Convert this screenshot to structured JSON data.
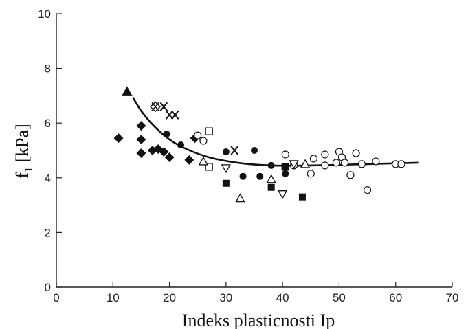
{
  "chart_data": {
    "type": "scatter",
    "xlabel": "Indeks plasticnosti Ip",
    "ylabel_main": "f",
    "ylabel_sub": "1",
    "ylabel_unit": "[kPa]",
    "xlim": [
      0,
      70
    ],
    "ylim": [
      0,
      10
    ],
    "xticks": [
      0,
      10,
      20,
      30,
      40,
      50,
      60,
      70
    ],
    "yticks": [
      0,
      2,
      4,
      6,
      8,
      10
    ],
    "grid": false,
    "series": [
      {
        "marker": "triangle-filled",
        "points": [
          [
            12.5,
            7.15
          ]
        ]
      },
      {
        "marker": "diamond-filled",
        "points": [
          [
            11,
            5.45
          ],
          [
            15,
            5.9
          ],
          [
            15,
            5.4
          ],
          [
            15,
            4.9
          ],
          [
            17,
            5.0
          ],
          [
            18,
            5.05
          ],
          [
            19,
            4.95
          ],
          [
            20,
            4.75
          ],
          [
            23.5,
            4.65
          ],
          [
            24.5,
            5.45
          ]
        ]
      },
      {
        "marker": "circle-filled",
        "points": [
          [
            19.5,
            5.6
          ],
          [
            22,
            5.2
          ],
          [
            30,
            4.95
          ],
          [
            33,
            4.05
          ],
          [
            35,
            5.0
          ],
          [
            36,
            4.05
          ],
          [
            38,
            4.45
          ],
          [
            40.5,
            4.15
          ]
        ]
      },
      {
        "marker": "circle-open",
        "points": [
          [
            25,
            5.55
          ],
          [
            26,
            5.35
          ],
          [
            40.5,
            4.85
          ],
          [
            42,
            4.45
          ],
          [
            45,
            4.15
          ],
          [
            45.5,
            4.7
          ],
          [
            47.5,
            4.85
          ],
          [
            47.5,
            4.45
          ],
          [
            49.5,
            4.55
          ],
          [
            50,
            4.95
          ],
          [
            50.5,
            4.75
          ],
          [
            51,
            4.55
          ],
          [
            52,
            4.1
          ],
          [
            53,
            4.9
          ],
          [
            54,
            4.5
          ],
          [
            55,
            3.55
          ],
          [
            56.5,
            4.6
          ],
          [
            60,
            4.5
          ],
          [
            61,
            4.5
          ]
        ]
      },
      {
        "marker": "square-open",
        "points": [
          [
            27,
            5.7
          ],
          [
            27,
            4.4
          ],
          [
            40.5,
            4.4
          ]
        ]
      },
      {
        "marker": "square-filled",
        "points": [
          [
            30,
            3.8
          ],
          [
            38,
            3.65
          ],
          [
            40.5,
            4.4
          ],
          [
            43.5,
            3.3
          ]
        ]
      },
      {
        "marker": "triangle-open",
        "points": [
          [
            26,
            4.6
          ],
          [
            32.5,
            3.25
          ],
          [
            38,
            3.95
          ],
          [
            44,
            4.5
          ]
        ]
      },
      {
        "marker": "triangle-down-open",
        "points": [
          [
            30,
            4.35
          ],
          [
            40,
            3.4
          ],
          [
            42,
            4.5
          ]
        ]
      },
      {
        "marker": "cross",
        "points": [
          [
            19,
            6.6
          ],
          [
            20,
            6.3
          ],
          [
            21,
            6.3
          ],
          [
            31.5,
            5.0
          ]
        ]
      },
      {
        "marker": "diamond-cross",
        "points": [
          [
            17.5,
            6.6
          ]
        ]
      }
    ],
    "trend_curve": [
      [
        13.5,
        6.95
      ],
      [
        15,
        6.45
      ],
      [
        17,
        5.95
      ],
      [
        20,
        5.4
      ],
      [
        23,
        5.05
      ],
      [
        27,
        4.75
      ],
      [
        32,
        4.55
      ],
      [
        38,
        4.45
      ],
      [
        45,
        4.45
      ],
      [
        55,
        4.5
      ],
      [
        64,
        4.55
      ]
    ]
  }
}
